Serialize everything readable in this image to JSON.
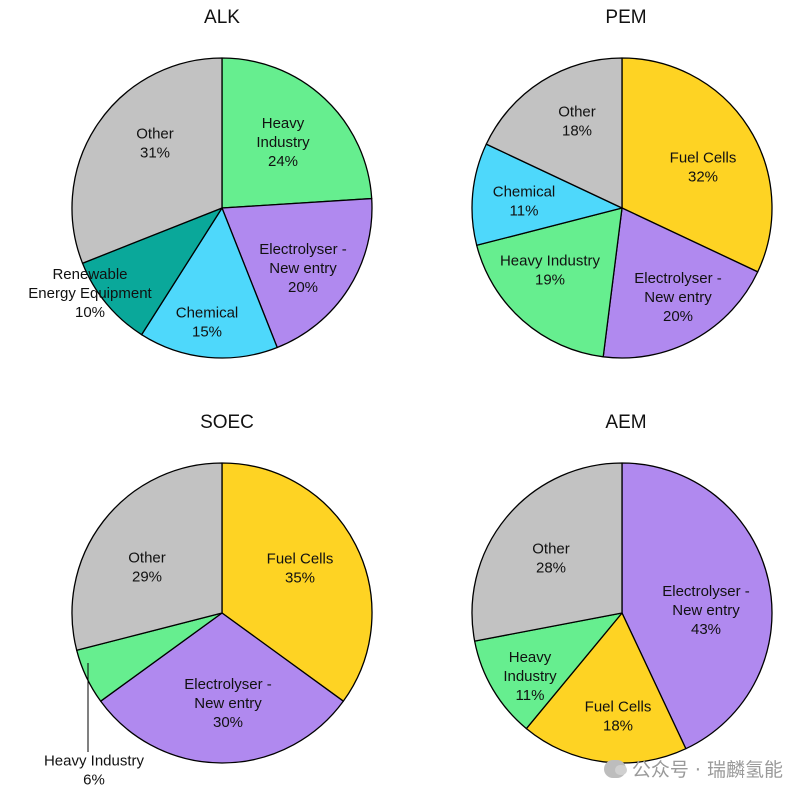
{
  "chart_data": [
    {
      "type": "pie",
      "title": "ALK",
      "slices": [
        {
          "label": [
            "Heavy",
            "Industry"
          ],
          "value": 24,
          "color": "#66ee8f"
        },
        {
          "label": [
            "Electrolyser -",
            "New entry"
          ],
          "value": 20,
          "color": "#b089ef"
        },
        {
          "label": [
            "Chemical"
          ],
          "value": 15,
          "color": "#4ed8fb"
        },
        {
          "label": [
            "Renewable",
            "Energy Equipment"
          ],
          "value": 10,
          "color": "#0aa89a"
        },
        {
          "label": [
            "Other"
          ],
          "value": 31,
          "color": "#c2c2c2"
        }
      ]
    },
    {
      "type": "pie",
      "title": "PEM",
      "slices": [
        {
          "label": [
            "Fuel Cells"
          ],
          "value": 32,
          "color": "#fed323"
        },
        {
          "label": [
            "Electrolyser -",
            "New entry"
          ],
          "value": 20,
          "color": "#b089ef"
        },
        {
          "label": [
            "Heavy Industry"
          ],
          "value": 19,
          "color": "#66ee8f"
        },
        {
          "label": [
            "Chemical"
          ],
          "value": 11,
          "color": "#4ed8fb"
        },
        {
          "label": [
            "Other"
          ],
          "value": 18,
          "color": "#c2c2c2"
        }
      ]
    },
    {
      "type": "pie",
      "title": "SOEC",
      "slices": [
        {
          "label": [
            "Fuel Cells"
          ],
          "value": 35,
          "color": "#fed323"
        },
        {
          "label": [
            "Electrolyser -",
            "New entry"
          ],
          "value": 30,
          "color": "#b089ef"
        },
        {
          "label": [
            "Heavy Industry"
          ],
          "value": 6,
          "color": "#66ee8f"
        },
        {
          "label": [
            "Other"
          ],
          "value": 29,
          "color": "#c2c2c2"
        }
      ]
    },
    {
      "type": "pie",
      "title": "AEM",
      "slices": [
        {
          "label": [
            "Electrolyser -",
            "New entry"
          ],
          "value": 43,
          "color": "#b089ef"
        },
        {
          "label": [
            "Fuel Cells"
          ],
          "value": 18,
          "color": "#fed323"
        },
        {
          "label": [
            "Heavy",
            "Industry"
          ],
          "value": 11,
          "color": "#66ee8f"
        },
        {
          "label": [
            "Other"
          ],
          "value": 28,
          "color": "#c2c2c2"
        }
      ]
    }
  ],
  "watermark": {
    "text": "公众号 · 瑞麟氢能",
    "icon": "wechat-icon"
  }
}
